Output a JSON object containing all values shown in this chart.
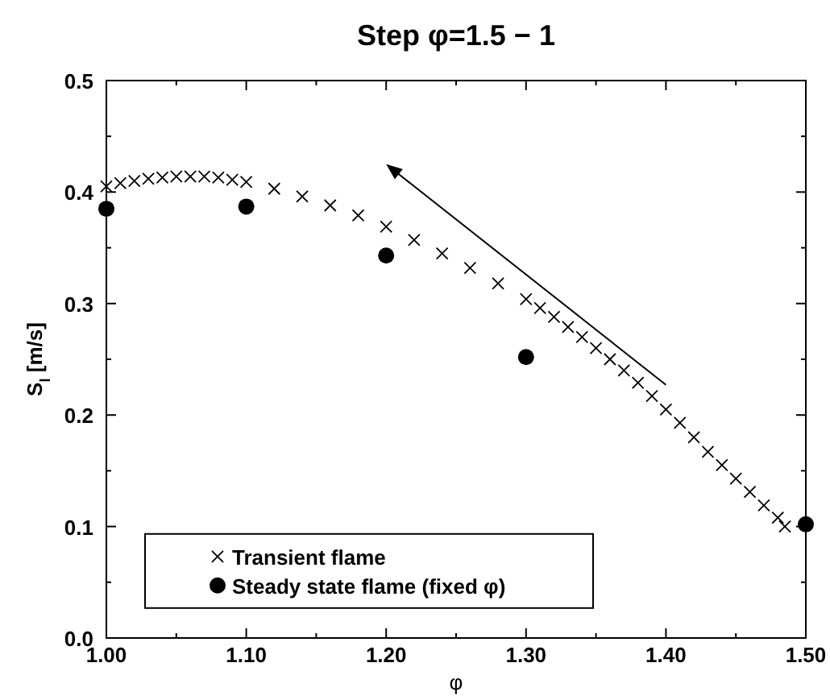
{
  "chart_data": {
    "type": "scatter",
    "title": "Step φ=1.5 − 1",
    "xlabel": "φ",
    "ylabel": "S$_{l}$ [m/s]",
    "xlim": [
      1.0,
      1.5
    ],
    "ylim": [
      0.0,
      0.5
    ],
    "xticks": [
      {
        "value": 1.0,
        "label": "1.00"
      },
      {
        "value": 1.05,
        "label": null
      },
      {
        "value": 1.1,
        "label": "1.10"
      },
      {
        "value": 1.15,
        "label": null
      },
      {
        "value": 1.2,
        "label": "1.20"
      },
      {
        "value": 1.25,
        "label": null
      },
      {
        "value": 1.3,
        "label": "1.30"
      },
      {
        "value": 1.35,
        "label": null
      },
      {
        "value": 1.4,
        "label": "1.40"
      },
      {
        "value": 1.45,
        "label": null
      },
      {
        "value": 1.5,
        "label": "1.50"
      }
    ],
    "yticks": [
      {
        "value": 0.0,
        "label": "0.0"
      },
      {
        "value": 0.05,
        "label": null
      },
      {
        "value": 0.1,
        "label": "0.1"
      },
      {
        "value": 0.15,
        "label": null
      },
      {
        "value": 0.2,
        "label": "0.2"
      },
      {
        "value": 0.25,
        "label": null
      },
      {
        "value": 0.3,
        "label": "0.3"
      },
      {
        "value": 0.35,
        "label": null
      },
      {
        "value": 0.4,
        "label": "0.4"
      },
      {
        "value": 0.45,
        "label": null
      },
      {
        "value": 0.5,
        "label": "0.5"
      }
    ],
    "grid": false,
    "legend": "bottom left",
    "series": [
      {
        "name": "Transient flame",
        "color": "#000000",
        "marker": "cross",
        "x": [
          1.0,
          1.01,
          1.02,
          1.03,
          1.04,
          1.05,
          1.06,
          1.07,
          1.08,
          1.09,
          1.1,
          1.12,
          1.14,
          1.16,
          1.18,
          1.2,
          1.22,
          1.24,
          1.26,
          1.28,
          1.3,
          1.31,
          1.32,
          1.33,
          1.34,
          1.35,
          1.36,
          1.37,
          1.38,
          1.39,
          1.4,
          1.41,
          1.42,
          1.43,
          1.44,
          1.45,
          1.46,
          1.47,
          1.48,
          1.485
        ],
        "values": [
          0.405,
          0.408,
          0.41,
          0.412,
          0.413,
          0.414,
          0.414,
          0.414,
          0.413,
          0.411,
          0.409,
          0.403,
          0.396,
          0.388,
          0.379,
          0.369,
          0.357,
          0.345,
          0.332,
          0.318,
          0.304,
          0.296,
          0.288,
          0.279,
          0.27,
          0.26,
          0.25,
          0.24,
          0.229,
          0.217,
          0.205,
          0.193,
          0.18,
          0.167,
          0.155,
          0.143,
          0.131,
          0.119,
          0.108,
          0.1
        ]
      },
      {
        "name": "Steady state flame (fixed φ)",
        "color": "#000000",
        "marker": "circle",
        "x": [
          1.0,
          1.1,
          1.2,
          1.3,
          1.5
        ],
        "values": [
          0.385,
          0.387,
          0.343,
          0.252,
          0.102
        ]
      }
    ]
  }
}
